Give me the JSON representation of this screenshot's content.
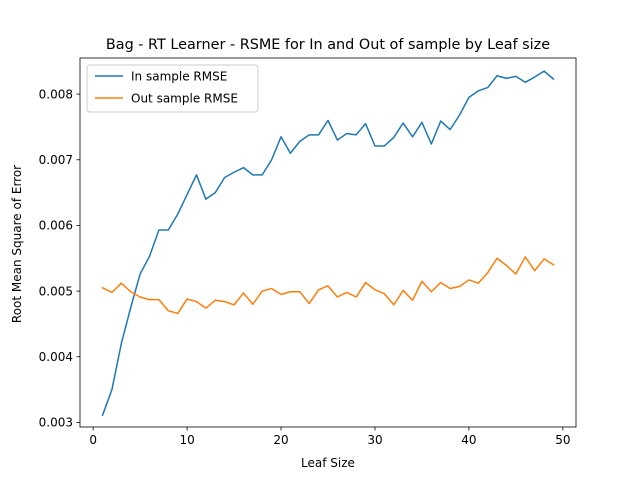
{
  "chart_data": {
    "type": "line",
    "title": "Bag - RT Learner - RSME for In and Out of sample by Leaf size",
    "xlabel": "Leaf Size",
    "ylabel": "Root Mean Square of Error",
    "xlim": [
      -1.4,
      51.4
    ],
    "ylim": [
      0.00293,
      0.00855
    ],
    "xticks": [
      0,
      10,
      20,
      30,
      40,
      50
    ],
    "xtick_labels": [
      "0",
      "10",
      "20",
      "30",
      "40",
      "50"
    ],
    "yticks": [
      0.003,
      0.004,
      0.005,
      0.006,
      0.007,
      0.008
    ],
    "ytick_labels": [
      "0.003",
      "0.004",
      "0.005",
      "0.006",
      "0.007",
      "0.008"
    ],
    "grid": false,
    "legend_position": "top-left",
    "x": [
      1,
      2,
      3,
      4,
      5,
      6,
      7,
      8,
      9,
      10,
      11,
      12,
      13,
      14,
      15,
      16,
      17,
      18,
      19,
      20,
      21,
      22,
      23,
      24,
      25,
      26,
      27,
      28,
      29,
      30,
      31,
      32,
      33,
      34,
      35,
      36,
      37,
      38,
      39,
      40,
      41,
      42,
      43,
      44,
      45,
      46,
      47,
      48,
      49
    ],
    "series": [
      {
        "name": "In sample RMSE",
        "color": "#1f77b4",
        "values": [
          0.00311,
          0.0035,
          0.0042,
          0.00475,
          0.00526,
          0.00553,
          0.00593,
          0.00593,
          0.00617,
          0.00647,
          0.00677,
          0.0064,
          0.0065,
          0.00673,
          0.00681,
          0.00688,
          0.00677,
          0.00677,
          0.007,
          0.00735,
          0.0071,
          0.00728,
          0.00738,
          0.00738,
          0.0076,
          0.0073,
          0.0074,
          0.00738,
          0.00755,
          0.00721,
          0.00721,
          0.00734,
          0.00756,
          0.00735,
          0.00757,
          0.00724,
          0.00759,
          0.00746,
          0.00768,
          0.00795,
          0.00805,
          0.0081,
          0.00828,
          0.00824,
          0.00827,
          0.00818,
          0.00826,
          0.00835,
          0.00823
        ]
      },
      {
        "name": "Out sample RMSE",
        "color": "#ff7f0e",
        "values": [
          0.00505,
          0.00498,
          0.00512,
          0.00499,
          0.00491,
          0.00487,
          0.00487,
          0.0047,
          0.00466,
          0.00488,
          0.00484,
          0.00474,
          0.00486,
          0.00484,
          0.00479,
          0.00497,
          0.0048,
          0.005,
          0.00504,
          0.00495,
          0.00499,
          0.00499,
          0.00481,
          0.00502,
          0.00508,
          0.00491,
          0.00498,
          0.00491,
          0.00513,
          0.00502,
          0.00496,
          0.00479,
          0.00501,
          0.00486,
          0.00515,
          0.00499,
          0.00513,
          0.00504,
          0.00507,
          0.00517,
          0.00512,
          0.00528,
          0.0055,
          0.00539,
          0.00526,
          0.00552,
          0.00531,
          0.00549,
          0.0054
        ]
      }
    ]
  }
}
